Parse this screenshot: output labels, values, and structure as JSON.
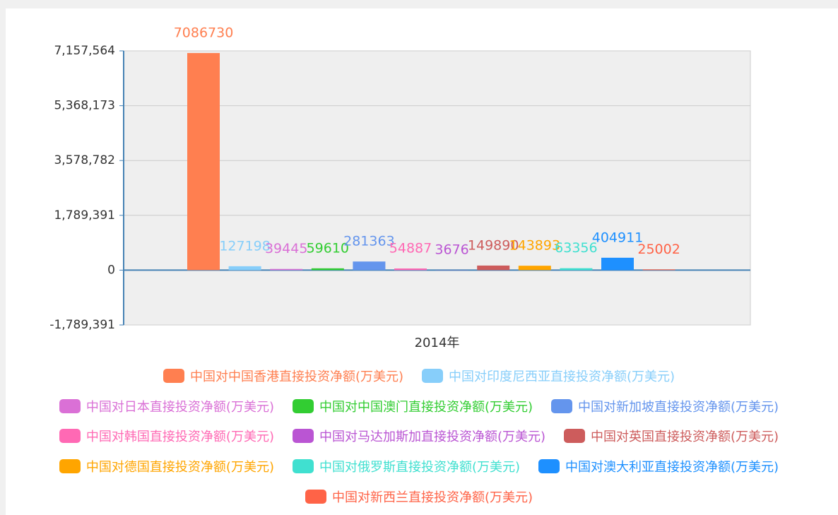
{
  "chart_data": {
    "type": "bar",
    "categories": [
      "2014年"
    ],
    "series": [
      {
        "name": "中国对中国香港直接投资净额(万美元)",
        "color": "#ff7f50",
        "values": [
          7086730
        ]
      },
      {
        "name": "中国对印度尼西亚直接投资净额(万美元)",
        "color": "#87cefa",
        "values": [
          127198
        ]
      },
      {
        "name": "中国对日本直接投资净额(万美元)",
        "color": "#da70d6",
        "values": [
          39445
        ]
      },
      {
        "name": "中国对中国澳门直接投资净额(万美元)",
        "color": "#32cd32",
        "values": [
          59610
        ]
      },
      {
        "name": "中国对新加坡直接投资净额(万美元)",
        "color": "#6495ed",
        "values": [
          281363
        ]
      },
      {
        "name": "中国对韩国直接投资净额(万美元)",
        "color": "#ff69b4",
        "values": [
          54887
        ]
      },
      {
        "name": "中国对马达加斯加直接投资净额(万美元)",
        "color": "#ba55d3",
        "values": [
          3676
        ]
      },
      {
        "name": "中国对英国直接投资净额(万美元)",
        "color": "#cd5c5c",
        "values": [
          149890
        ]
      },
      {
        "name": "中国对德国直接投资净额(万美元)",
        "color": "#ffa500",
        "values": [
          143893
        ]
      },
      {
        "name": "中国对俄罗斯直接投资净额(万美元)",
        "color": "#40e0d0",
        "values": [
          63356
        ]
      },
      {
        "name": "中国对澳大利亚直接投资净额(万美元)",
        "color": "#1e90ff",
        "values": [
          404911
        ]
      },
      {
        "name": "中国对新西兰直接投资净额(万美元)",
        "color": "#ff6347",
        "values": [
          25002
        ]
      }
    ],
    "ylim": [
      -1789391,
      7157564
    ],
    "yticks": [
      {
        "value": -1789391,
        "label": "-1,789,391"
      },
      0,
      {
        "value": 1789391,
        "label": "1,789,391"
      },
      {
        "value": 3578782,
        "label": "3,578,782"
      },
      {
        "value": 5368173,
        "label": "5,368,173"
      },
      {
        "value": 7157564,
        "label": "7,157,564"
      }
    ],
    "grid": true,
    "legend": "bottom"
  }
}
